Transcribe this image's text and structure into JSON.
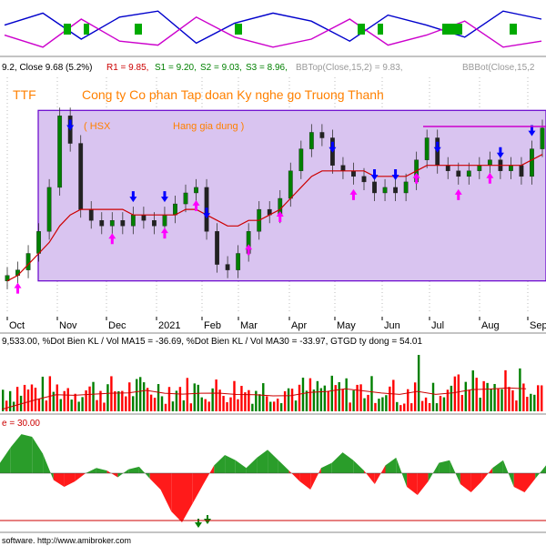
{
  "header": {
    "ohlc_text": "9.2, Close 9.68 (5.2%)",
    "r1": "R1 = 9.85,",
    "s1": "S1 = 9.20,",
    "s2": "S2 = 9.03,",
    "s3": "S3 = 8.96,",
    "bbtop": "BBTop(Close,15,2) = 9.83,",
    "bbbot": "BBBot(Close,15,2"
  },
  "ticker": "TTF",
  "company": "Cong ty Co phan Tap doan Ky nghe go Truong Thanh",
  "exchange": "( HSX",
  "sector": "Hang gia dung )",
  "x_labels": [
    "Oct",
    "Nov",
    "Dec",
    "2021",
    "Feb",
    "Mar",
    "Apr",
    "May",
    "Jun",
    "Jul",
    "Aug",
    "Sep"
  ],
  "volume_header": "9,533.00, %Dot Bien KL / Vol MA15 = -36.69, %Dot Bien KL / Vol MA30 = -33.97, GTGD ty dong = 54.01",
  "osc_header": "e = 30.00",
  "footer": "software.  http://www.amibroker.com",
  "colors": {
    "up": "#008000",
    "down": "#ff0000",
    "ma": "#cc0000",
    "band_fill": "#d9c4f0",
    "band_line": "#6600cc",
    "buy_arrow": "#ff00ff",
    "sell_arrow": "#0000ff",
    "title": "#ff8000"
  },
  "chart_data": [
    {
      "type": "line",
      "name": "top-indicator",
      "series": [
        {
          "values": [
            0.2,
            0.8,
            -0.5,
            0.6,
            0.9,
            -0.7,
            0.3,
            0.8,
            0.4,
            -0.6,
            0.7,
            0.2,
            -0.4,
            0.9,
            0.5
          ]
        },
        {
          "values": [
            -0.3,
            -0.9,
            0.5,
            -0.6,
            -0.8,
            0.6,
            -0.4,
            -0.9,
            -0.5,
            0.5,
            -0.8,
            -0.3,
            0.4,
            -0.9,
            -0.6
          ]
        }
      ]
    },
    {
      "type": "candlestick",
      "name": "price",
      "close": [
        7.0,
        7.1,
        7.4,
        7.8,
        8.6,
        9.9,
        9.4,
        8.2,
        8.0,
        7.9,
        8.0,
        7.9,
        8.1,
        8.0,
        7.9,
        8.1,
        8.3,
        8.5,
        8.6,
        7.8,
        7.2,
        7.1,
        7.4,
        7.8,
        8.2,
        8.1,
        8.4,
        8.9,
        9.3,
        9.6,
        9.5,
        9.0,
        8.9,
        8.8,
        8.7,
        8.5,
        8.6,
        8.5,
        8.7,
        9.1,
        9.5,
        9.0,
        8.9,
        8.8,
        8.9,
        9.0,
        9.1,
        8.9,
        9.0,
        8.8,
        9.3,
        9.68
      ],
      "ma": [
        6.9,
        7.0,
        7.2,
        7.4,
        7.6,
        7.9,
        8.1,
        8.2,
        8.2,
        8.2,
        8.2,
        8.2,
        8.1,
        8.1,
        8.1,
        8.1,
        8.1,
        8.2,
        8.2,
        8.1,
        8.0,
        7.9,
        7.9,
        8.0,
        8.0,
        8.1,
        8.2,
        8.4,
        8.6,
        8.8,
        8.9,
        8.9,
        8.9,
        8.9,
        8.9,
        8.8,
        8.8,
        8.8,
        8.8,
        8.9,
        9.0,
        9.0,
        9.0,
        9.0,
        9.0,
        9.0,
        9.0,
        9.0,
        9.0,
        9.0,
        9.1,
        9.2
      ],
      "band_top": 10.0,
      "band_bottom": 6.9,
      "ylim": [
        6.3,
        10.6
      ],
      "buy_signals": [
        1,
        10,
        15,
        18,
        23,
        26,
        33,
        39,
        43,
        46
      ],
      "sell_signals": [
        6,
        12,
        15,
        19,
        31,
        35,
        37,
        41,
        47,
        50
      ]
    },
    {
      "type": "bar",
      "name": "volume",
      "note_peak_index": 44
    },
    {
      "type": "area",
      "name": "oscillator",
      "values": [
        8,
        20,
        30,
        28,
        15,
        -5,
        -10,
        -6,
        0,
        4,
        2,
        -3,
        3,
        5,
        -4,
        -12,
        -28,
        -36,
        -22,
        -8,
        6,
        14,
        10,
        4,
        12,
        18,
        10,
        2,
        -6,
        -12,
        4,
        8,
        16,
        10,
        2,
        -8,
        6,
        12,
        -10,
        -16,
        -6,
        8,
        10,
        -8,
        -14,
        -6,
        4,
        10,
        -10,
        -14,
        -4,
        6
      ],
      "ylim": [
        -40,
        35
      ]
    }
  ]
}
